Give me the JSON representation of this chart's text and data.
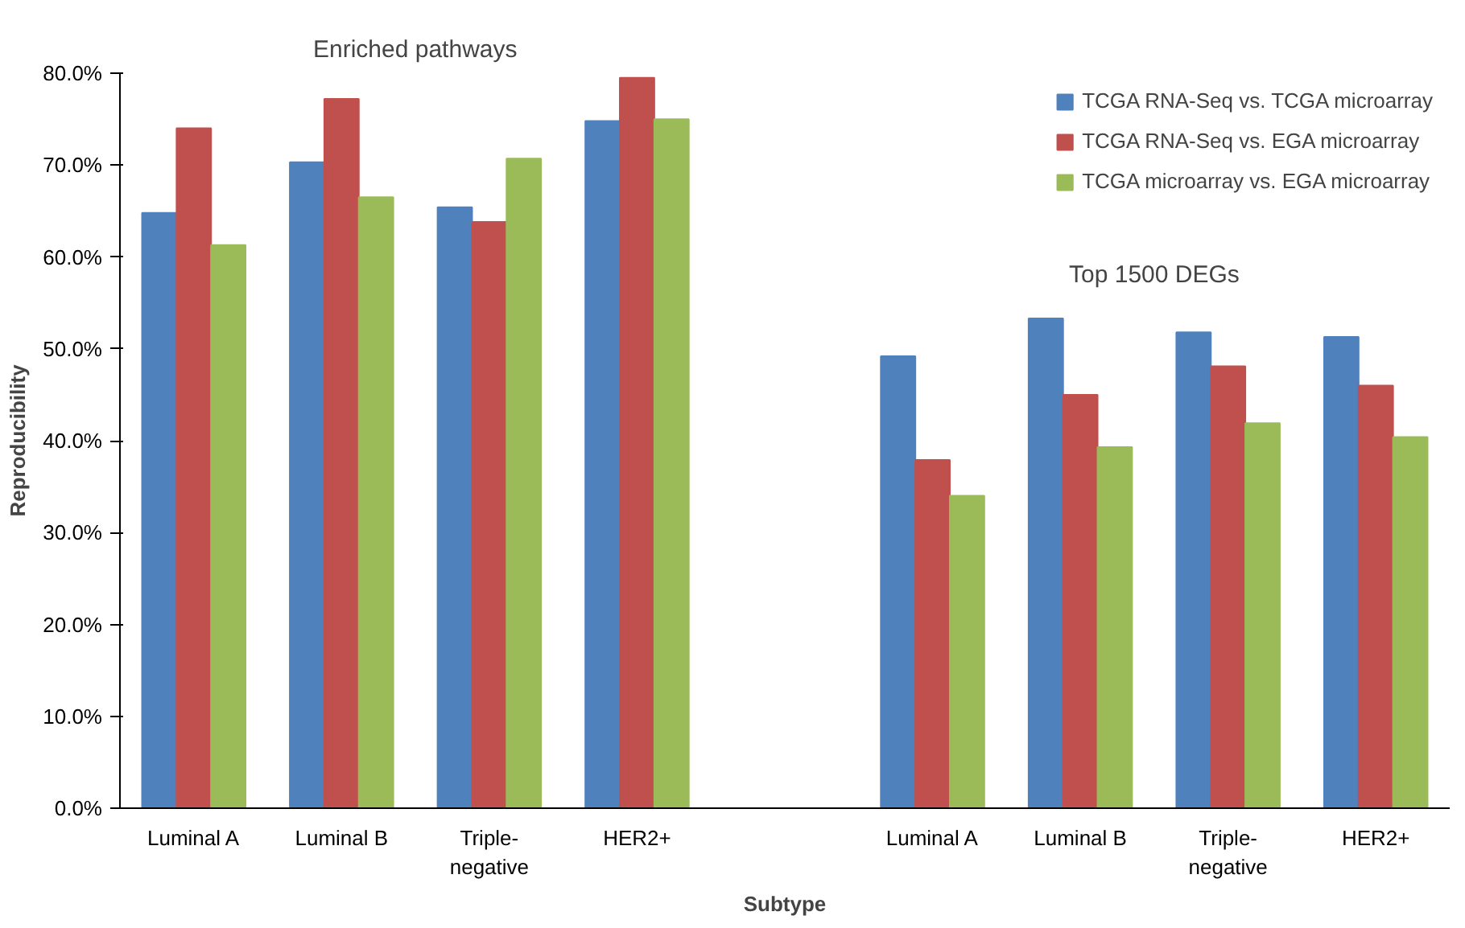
{
  "chart_data": {
    "type": "bar",
    "xlabel": "Subtype",
    "ylabel": "Reproducibility",
    "categories": [
      "Luminal A",
      "Luminal B",
      "Triple-\nnegative",
      "HER2+",
      null,
      "Luminal A",
      "Luminal B",
      "Triple-\nnegative",
      "HER2+"
    ],
    "series": [
      {
        "name": "TCGA RNA-Seq vs. TCGA microarray",
        "color": "#4f81bd",
        "values": [
          64.8,
          70.3,
          65.4,
          74.8,
          null,
          49.2,
          53.3,
          51.8,
          51.3
        ]
      },
      {
        "name": "TCGA RNA-Seq vs. EGA microarray",
        "color": "#c0504d",
        "values": [
          74.0,
          77.2,
          63.8,
          79.5,
          null,
          37.9,
          45.0,
          48.1,
          46.0
        ]
      },
      {
        "name": "TCGA microarray vs. EGA microarray",
        "color": "#9bbb59",
        "values": [
          61.3,
          66.5,
          70.7,
          75.0,
          null,
          34.0,
          39.3,
          41.9,
          40.4
        ]
      }
    ],
    "annotations": [
      "Enriched pathways",
      "Top 1500 DEGs"
    ],
    "ylim": [
      0,
      80
    ],
    "yticks": [
      {
        "value": 0,
        "label": "0.0%"
      },
      {
        "value": 10,
        "label": "10.0%"
      },
      {
        "value": 20,
        "label": "20.0%"
      },
      {
        "value": 30,
        "label": "30.0%"
      },
      {
        "value": 40,
        "label": "40.0%"
      },
      {
        "value": 50,
        "label": "50.0%"
      },
      {
        "value": 60,
        "label": "60.0%"
      },
      {
        "value": 70,
        "label": "70.0%"
      },
      {
        "value": 80,
        "label": "80.0%"
      }
    ],
    "grid": false,
    "legend": "top right"
  }
}
